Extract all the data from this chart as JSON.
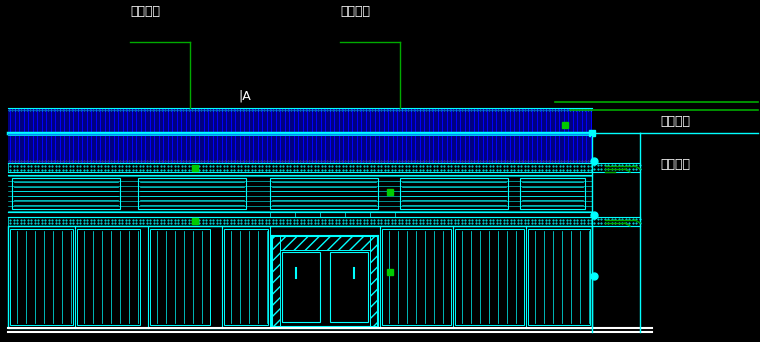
{
  "bg_color": "#000000",
  "cyan": "#00FFFF",
  "green": "#00AA00",
  "bright_green": "#00CC00",
  "blue_fill": "#000080",
  "blue_stripe": "#0000FF",
  "blue_bright": "#4444FF",
  "white": "#FFFFFF",
  "label_green_wall": "绿色墙漆",
  "label_white_wall_top": "白色墙漆",
  "label_white_wall_right": "白色墙漆",
  "label_tile": "饰面瓷砧",
  "label_A": "|A"
}
